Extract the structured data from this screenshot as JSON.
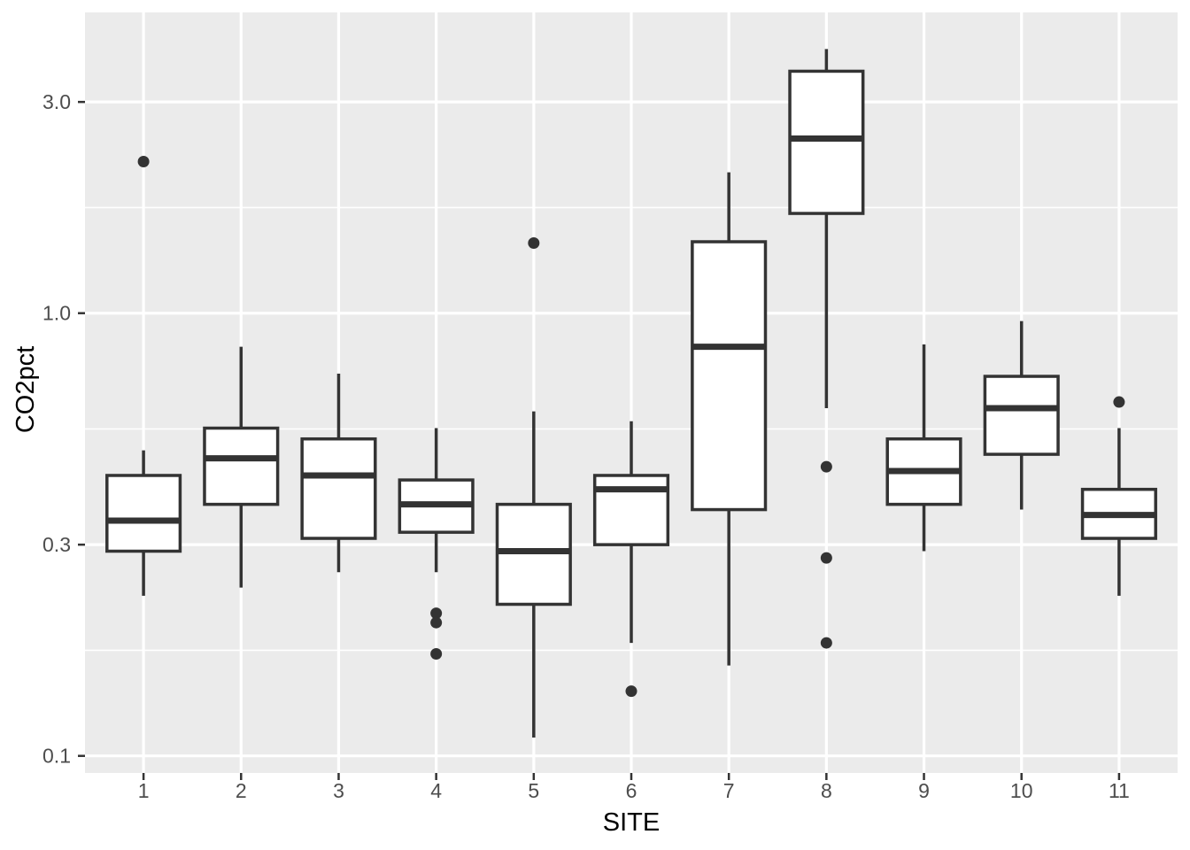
{
  "figure": {
    "background": "#ffffff"
  },
  "chart_data": {
    "type": "boxplot",
    "title": "",
    "xlabel": "SITE",
    "ylabel": "CO2pct",
    "x_categories": [
      "1",
      "2",
      "3",
      "4",
      "5",
      "6",
      "7",
      "8",
      "9",
      "10",
      "11"
    ],
    "y_scale": "log10",
    "ylim": [
      0.0915,
      4.78
    ],
    "y_major_ticks": [
      {
        "value": 0.1,
        "label": "0.1"
      },
      {
        "value": 0.3,
        "label": "0.3"
      },
      {
        "value": 1.0,
        "label": "1.0"
      },
      {
        "value": 3.0,
        "label": "3.0"
      }
    ],
    "y_minor_ticks": [
      0.1732,
      0.5477,
      1.7321
    ],
    "grid": "on",
    "legend_position": "none",
    "series": [
      {
        "site": "1",
        "whisker_low": 0.23,
        "q1": 0.29,
        "median": 0.34,
        "q3": 0.43,
        "whisker_high": 0.49,
        "outliers": [
          2.2
        ]
      },
      {
        "site": "2",
        "whisker_low": 0.24,
        "q1": 0.37,
        "median": 0.47,
        "q3": 0.55,
        "whisker_high": 0.84,
        "outliers": []
      },
      {
        "site": "3",
        "whisker_low": 0.26,
        "q1": 0.31,
        "median": 0.43,
        "q3": 0.52,
        "whisker_high": 0.73,
        "outliers": []
      },
      {
        "site": "4",
        "whisker_low": 0.26,
        "q1": 0.32,
        "median": 0.37,
        "q3": 0.42,
        "whisker_high": 0.55,
        "outliers": [
          0.21,
          0.2,
          0.17
        ]
      },
      {
        "site": "5",
        "whisker_low": 0.11,
        "q1": 0.22,
        "median": 0.29,
        "q3": 0.37,
        "whisker_high": 0.6,
        "outliers": [
          1.44
        ]
      },
      {
        "site": "6",
        "whisker_low": 0.18,
        "q1": 0.3,
        "median": 0.4,
        "q3": 0.43,
        "whisker_high": 0.57,
        "outliers": [
          0.14
        ]
      },
      {
        "site": "7",
        "whisker_low": 0.16,
        "q1": 0.36,
        "median": 0.84,
        "q3": 1.45,
        "whisker_high": 2.08,
        "outliers": []
      },
      {
        "site": "8",
        "whisker_low": 0.61,
        "q1": 1.68,
        "median": 2.48,
        "q3": 3.52,
        "whisker_high": 3.95,
        "outliers": [
          0.45,
          0.28,
          0.18
        ]
      },
      {
        "site": "9",
        "whisker_low": 0.29,
        "q1": 0.37,
        "median": 0.44,
        "q3": 0.52,
        "whisker_high": 0.85,
        "outliers": []
      },
      {
        "site": "10",
        "whisker_low": 0.36,
        "q1": 0.48,
        "median": 0.61,
        "q3": 0.72,
        "whisker_high": 0.96,
        "outliers": []
      },
      {
        "site": "11",
        "whisker_low": 0.23,
        "q1": 0.31,
        "median": 0.35,
        "q3": 0.4,
        "whisker_high": 0.55,
        "outliers": [
          0.63
        ]
      }
    ],
    "style": {
      "panel_background": "#ebebeb",
      "grid_color": "#ffffff",
      "box_fill": "#ffffff",
      "box_stroke": "#333333",
      "outlier_color": "#333333",
      "tick_mark_color": "#333333",
      "tick_label_color": "#4d4d4d",
      "axis_title_color": "#000000"
    }
  }
}
